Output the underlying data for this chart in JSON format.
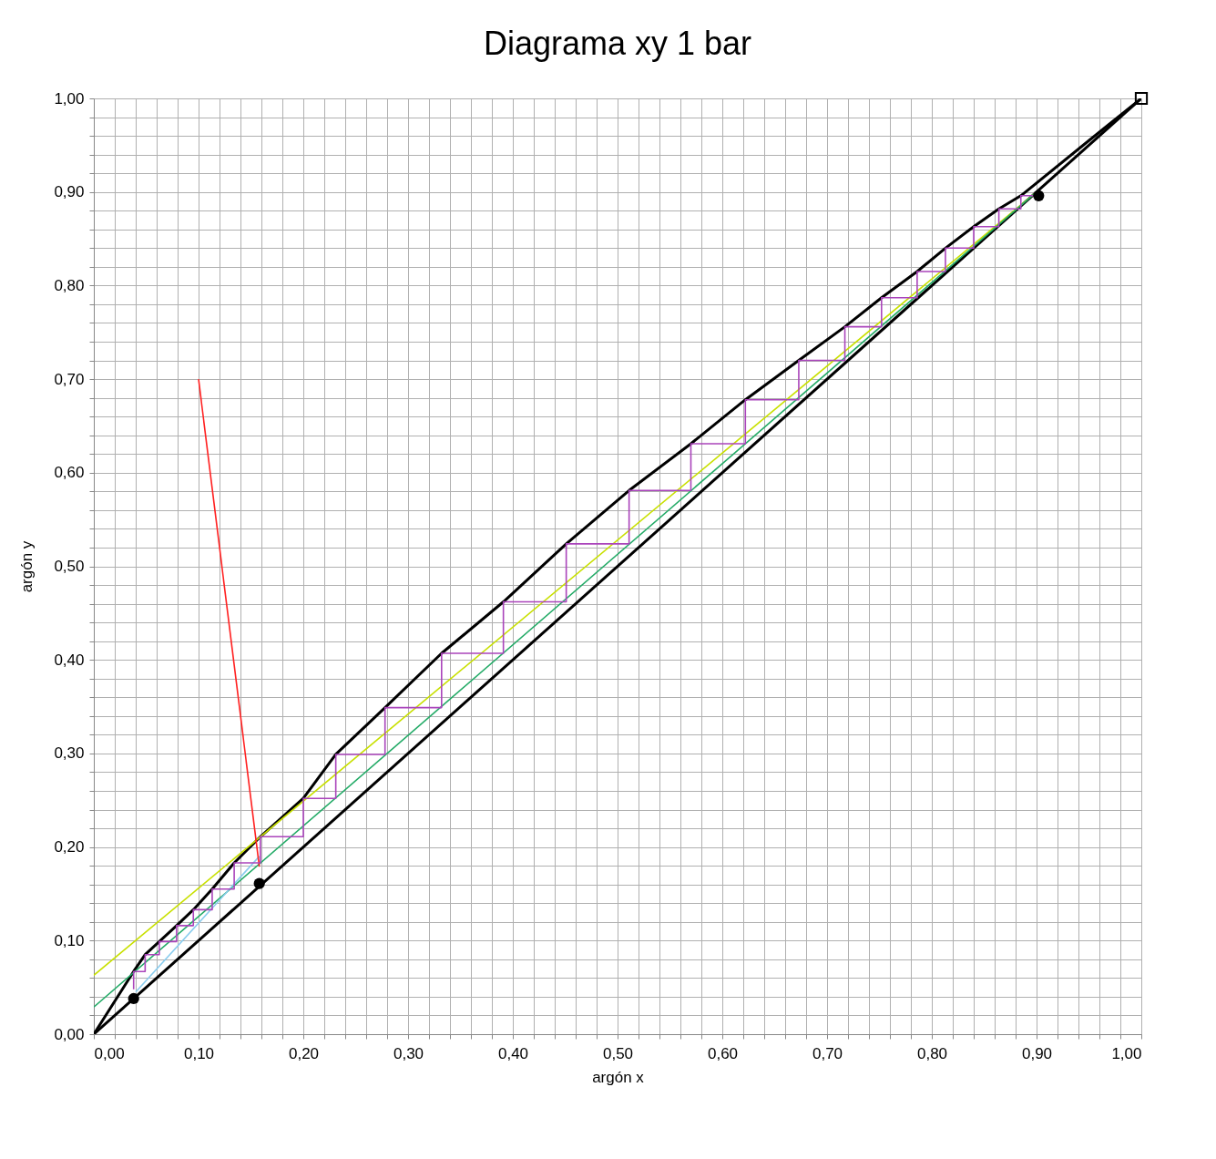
{
  "chart_data": {
    "type": "line",
    "title": "Diagrama xy 1 bar",
    "xlabel": "argón x",
    "ylabel": "argón y",
    "xlim": [
      0,
      1
    ],
    "ylim": [
      0,
      1
    ],
    "xticks": [
      {
        "value": 0,
        "label": "0,00"
      },
      {
        "value": 0.02,
        "label": null
      },
      {
        "value": 0.04,
        "label": null
      },
      {
        "value": 0.06,
        "label": null
      },
      {
        "value": 0.08,
        "label": null
      },
      {
        "value": 0.1,
        "label": "0,10"
      },
      {
        "value": 0.12,
        "label": null
      },
      {
        "value": 0.14,
        "label": null
      },
      {
        "value": 0.16,
        "label": null
      },
      {
        "value": 0.18,
        "label": null
      },
      {
        "value": 0.2,
        "label": "0,20"
      },
      {
        "value": 0.22,
        "label": null
      },
      {
        "value": 0.24,
        "label": null
      },
      {
        "value": 0.26,
        "label": null
      },
      {
        "value": 0.28,
        "label": null
      },
      {
        "value": 0.3,
        "label": "0,30"
      },
      {
        "value": 0.32,
        "label": null
      },
      {
        "value": 0.34,
        "label": null
      },
      {
        "value": 0.36,
        "label": null
      },
      {
        "value": 0.38,
        "label": null
      },
      {
        "value": 0.4,
        "label": "0,40"
      },
      {
        "value": 0.42,
        "label": null
      },
      {
        "value": 0.44,
        "label": null
      },
      {
        "value": 0.46,
        "label": null
      },
      {
        "value": 0.48,
        "label": null
      },
      {
        "value": 0.5,
        "label": "0,50"
      },
      {
        "value": 0.52,
        "label": null
      },
      {
        "value": 0.54,
        "label": null
      },
      {
        "value": 0.56,
        "label": null
      },
      {
        "value": 0.58,
        "label": null
      },
      {
        "value": 0.6,
        "label": "0,60"
      },
      {
        "value": 0.62,
        "label": null
      },
      {
        "value": 0.64,
        "label": null
      },
      {
        "value": 0.66,
        "label": null
      },
      {
        "value": 0.68,
        "label": null
      },
      {
        "value": 0.7,
        "label": "0,70"
      },
      {
        "value": 0.72,
        "label": null
      },
      {
        "value": 0.74,
        "label": null
      },
      {
        "value": 0.76,
        "label": null
      },
      {
        "value": 0.78,
        "label": null
      },
      {
        "value": 0.8,
        "label": "0,80"
      },
      {
        "value": 0.82,
        "label": null
      },
      {
        "value": 0.84,
        "label": null
      },
      {
        "value": 0.86,
        "label": null
      },
      {
        "value": 0.88,
        "label": null
      },
      {
        "value": 0.9,
        "label": "0,90"
      },
      {
        "value": 0.92,
        "label": null
      },
      {
        "value": 0.94,
        "label": null
      },
      {
        "value": 0.96,
        "label": null
      },
      {
        "value": 0.98,
        "label": null
      },
      {
        "value": 1,
        "label": "1,00"
      }
    ],
    "yticks": [
      {
        "value": 0,
        "label": "0,00"
      },
      {
        "value": 0.02,
        "label": null
      },
      {
        "value": 0.04,
        "label": null
      },
      {
        "value": 0.06,
        "label": null
      },
      {
        "value": 0.08,
        "label": null
      },
      {
        "value": 0.1,
        "label": "0,10"
      },
      {
        "value": 0.12,
        "label": null
      },
      {
        "value": 0.14,
        "label": null
      },
      {
        "value": 0.16,
        "label": null
      },
      {
        "value": 0.18,
        "label": null
      },
      {
        "value": 0.2,
        "label": "0,20"
      },
      {
        "value": 0.22,
        "label": null
      },
      {
        "value": 0.24,
        "label": null
      },
      {
        "value": 0.26,
        "label": null
      },
      {
        "value": 0.28,
        "label": null
      },
      {
        "value": 0.3,
        "label": "0,30"
      },
      {
        "value": 0.32,
        "label": null
      },
      {
        "value": 0.34,
        "label": null
      },
      {
        "value": 0.36,
        "label": null
      },
      {
        "value": 0.38,
        "label": null
      },
      {
        "value": 0.4,
        "label": "0,40"
      },
      {
        "value": 0.42,
        "label": null
      },
      {
        "value": 0.44,
        "label": null
      },
      {
        "value": 0.46,
        "label": null
      },
      {
        "value": 0.48,
        "label": null
      },
      {
        "value": 0.5,
        "label": "0,50"
      },
      {
        "value": 0.52,
        "label": null
      },
      {
        "value": 0.54,
        "label": null
      },
      {
        "value": 0.56,
        "label": null
      },
      {
        "value": 0.58,
        "label": null
      },
      {
        "value": 0.6,
        "label": "0,60"
      },
      {
        "value": 0.62,
        "label": null
      },
      {
        "value": 0.64,
        "label": null
      },
      {
        "value": 0.66,
        "label": null
      },
      {
        "value": 0.68,
        "label": null
      },
      {
        "value": 0.7,
        "label": "0,70"
      },
      {
        "value": 0.72,
        "label": null
      },
      {
        "value": 0.74,
        "label": null
      },
      {
        "value": 0.76,
        "label": null
      },
      {
        "value": 0.78,
        "label": null
      },
      {
        "value": 0.8,
        "label": "0,80"
      },
      {
        "value": 0.82,
        "label": null
      },
      {
        "value": 0.84,
        "label": null
      },
      {
        "value": 0.86,
        "label": null
      },
      {
        "value": 0.88,
        "label": null
      },
      {
        "value": 0.9,
        "label": "0,90"
      },
      {
        "value": 0.92,
        "label": null
      },
      {
        "value": 0.94,
        "label": null
      },
      {
        "value": 0.96,
        "label": null
      },
      {
        "value": 0.98,
        "label": null
      },
      {
        "value": 1,
        "label": "1,00"
      }
    ],
    "grid": true,
    "series": [
      {
        "color": "#000000",
        "x": [
          0,
          1
        ],
        "values": [
          0,
          1
        ]
      },
      {
        "color": "#000000",
        "x": [
          0,
          0.038,
          0.049,
          0.0625,
          0.079,
          0.095,
          0.113,
          0.134,
          0.159,
          0.2,
          0.231,
          0.278,
          0.332,
          0.391,
          0.451,
          0.511,
          0.57,
          0.622,
          0.673,
          0.717,
          0.752,
          0.786,
          0.813,
          0.84,
          0.864,
          0.885,
          0.95,
          1
        ],
        "values": [
          0,
          0.067,
          0.085,
          0.099,
          0.116,
          0.133,
          0.155,
          0.183,
          0.211,
          0.252,
          0.299,
          0.349,
          0.407,
          0.462,
          0.524,
          0.581,
          0.631,
          0.678,
          0.72,
          0.756,
          0.787,
          0.815,
          0.84,
          0.863,
          0.882,
          0.896,
          0.955,
          1
        ]
      },
      {
        "color": "#c8e000",
        "x": [
          0,
          0.9
        ],
        "values": [
          0.063,
          0.9
        ]
      },
      {
        "color": "#22aa66",
        "x": [
          0,
          0.9
        ],
        "values": [
          0.029,
          0.9
        ]
      },
      {
        "color": "#88ccee",
        "x": [
          0.04,
          0.158
        ],
        "values": [
          0.045,
          0.19
        ]
      },
      {
        "color": "#ff2020",
        "x": [
          0.1,
          0.158
        ],
        "values": [
          0.7,
          0.179
        ]
      },
      {
        "color": "#aa44bb",
        "x": [
          0.902,
          0.885,
          0.885,
          0.864,
          0.864,
          0.84,
          0.84,
          0.813,
          0.813,
          0.786,
          0.786,
          0.752,
          0.752,
          0.717,
          0.717,
          0.673,
          0.673,
          0.622,
          0.622,
          0.57,
          0.57,
          0.511,
          0.511,
          0.451,
          0.451,
          0.391,
          0.391,
          0.332,
          0.332,
          0.278,
          0.278,
          0.231,
          0.231,
          0.2,
          0.2,
          0.159,
          0.159,
          0.134,
          0.134,
          0.113,
          0.113,
          0.095,
          0.095,
          0.079,
          0.079,
          0.0625,
          0.0625,
          0.049,
          0.049,
          0.038,
          0.038
        ],
        "values": [
          0.896,
          0.896,
          0.882,
          0.882,
          0.863,
          0.863,
          0.84,
          0.84,
          0.815,
          0.815,
          0.787,
          0.787,
          0.756,
          0.756,
          0.72,
          0.72,
          0.678,
          0.678,
          0.631,
          0.631,
          0.581,
          0.581,
          0.524,
          0.524,
          0.462,
          0.462,
          0.407,
          0.407,
          0.349,
          0.349,
          0.299,
          0.299,
          0.252,
          0.252,
          0.211,
          0.211,
          0.183,
          0.183,
          0.155,
          0.155,
          0.133,
          0.133,
          0.116,
          0.116,
          0.099,
          0.099,
          0.085,
          0.085,
          0.067,
          0.067,
          0.048
        ]
      },
      {
        "type": "scatter",
        "color": "#000000",
        "marker": "circle",
        "x": [
          0.038,
          0.158,
          0.902
        ],
        "values": [
          0.038,
          0.161,
          0.896
        ]
      },
      {
        "type": "scatter",
        "color": "#000000",
        "marker": "square",
        "x": [
          1
        ],
        "values": [
          1
        ]
      }
    ]
  }
}
